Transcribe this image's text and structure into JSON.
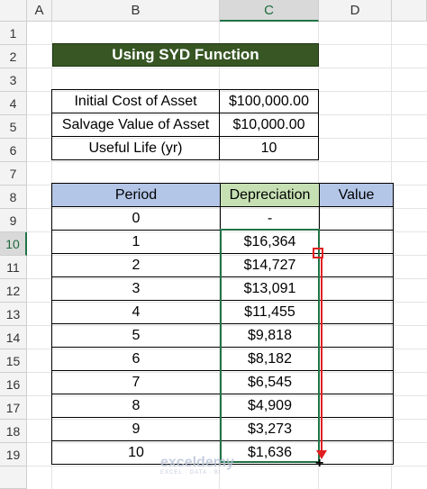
{
  "columns": [
    "A",
    "B",
    "C",
    "D"
  ],
  "rows": [
    "1",
    "2",
    "3",
    "4",
    "5",
    "6",
    "7",
    "8",
    "9",
    "10",
    "11",
    "12",
    "13",
    "14",
    "15",
    "16",
    "17",
    "18",
    "19"
  ],
  "title": "Using SYD Function",
  "info": [
    {
      "label": "Initial Cost of Asset",
      "value": "$100,000.00"
    },
    {
      "label": "Salvage Value of Asset",
      "value": "$10,000.00"
    },
    {
      "label": "Useful Life (yr)",
      "value": "10"
    }
  ],
  "table": {
    "headers": [
      "Period",
      "Depreciation",
      "Value"
    ],
    "rows": [
      {
        "period": "0",
        "dep": "-",
        "value": ""
      },
      {
        "period": "1",
        "dep": "$16,364",
        "value": ""
      },
      {
        "period": "2",
        "dep": "$14,727",
        "value": ""
      },
      {
        "period": "3",
        "dep": "$13,091",
        "value": ""
      },
      {
        "period": "4",
        "dep": "$11,455",
        "value": ""
      },
      {
        "period": "5",
        "dep": "$9,818",
        "value": ""
      },
      {
        "period": "6",
        "dep": "$8,182",
        "value": ""
      },
      {
        "period": "7",
        "dep": "$6,545",
        "value": ""
      },
      {
        "period": "8",
        "dep": "$4,909",
        "value": ""
      },
      {
        "period": "9",
        "dep": "$3,273",
        "value": ""
      },
      {
        "period": "10",
        "dep": "$1,636",
        "value": ""
      }
    ]
  },
  "watermark": {
    "main": "exceldemy",
    "sub": "EXCEL · DATA · BI"
  },
  "colors": {
    "title_bg": "#375623",
    "header_blue": "#b4c6e7",
    "header_green": "#c6e0b4",
    "selection": "#217346",
    "drag_arrow": "#e02020"
  }
}
